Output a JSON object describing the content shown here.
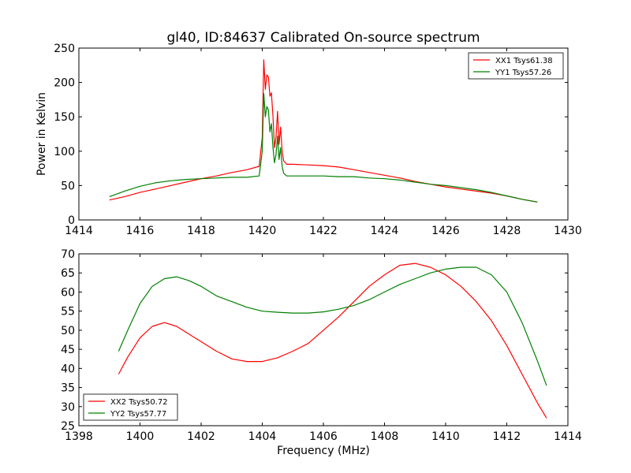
{
  "title": "gl40, ID:84637 Calibrated On-source spectrum",
  "colors": {
    "red": "#ff0000",
    "green": "#008000",
    "axis": "#000000"
  },
  "chart_data": [
    {
      "type": "line",
      "ylabel": "Power in Kelvin",
      "xlabel": "",
      "xlim": [
        1414,
        1430
      ],
      "ylim": [
        0,
        250
      ],
      "xticks": [
        "1414",
        "1416",
        "1418",
        "1420",
        "1422",
        "1424",
        "1426",
        "1428",
        "1430"
      ],
      "yticks": [
        "0",
        "50",
        "100",
        "150",
        "200",
        "250"
      ],
      "legend_position": "top-right",
      "series": [
        {
          "name": "XX1 Tsys61.38",
          "color": "#ff0000",
          "x": [
            1415.0,
            1415.5,
            1416.0,
            1416.5,
            1417.0,
            1417.5,
            1418.0,
            1418.5,
            1419.0,
            1419.5,
            1419.9,
            1420.0,
            1420.05,
            1420.1,
            1420.15,
            1420.2,
            1420.25,
            1420.3,
            1420.35,
            1420.4,
            1420.45,
            1420.5,
            1420.55,
            1420.6,
            1420.65,
            1420.7,
            1420.8,
            1421.0,
            1421.5,
            1422.0,
            1422.5,
            1423.0,
            1423.5,
            1424.0,
            1424.5,
            1425.0,
            1425.5,
            1426.0,
            1426.5,
            1427.0,
            1427.5,
            1428.0,
            1428.5,
            1429.0
          ],
          "y": [
            29,
            34,
            40,
            45,
            50,
            55,
            60,
            64,
            69,
            73,
            78,
            120,
            233,
            190,
            211,
            208,
            180,
            185,
            150,
            105,
            120,
            158,
            110,
            135,
            100,
            86,
            81,
            81,
            80,
            79,
            77,
            73,
            69,
            65,
            61,
            56,
            52,
            48,
            45,
            42,
            39,
            35,
            30,
            26
          ]
        },
        {
          "name": "YY1 Tsys57.26",
          "color": "#008000",
          "x": [
            1415.0,
            1415.5,
            1416.0,
            1416.5,
            1417.0,
            1417.5,
            1418.0,
            1418.5,
            1419.0,
            1419.5,
            1419.9,
            1420.0,
            1420.05,
            1420.1,
            1420.15,
            1420.2,
            1420.25,
            1420.3,
            1420.35,
            1420.4,
            1420.45,
            1420.5,
            1420.55,
            1420.6,
            1420.65,
            1420.7,
            1420.8,
            1421.0,
            1421.5,
            1422.0,
            1422.5,
            1423.0,
            1423.5,
            1424.0,
            1424.5,
            1425.0,
            1425.5,
            1426.0,
            1426.5,
            1427.0,
            1427.5,
            1428.0,
            1428.5,
            1429.0
          ],
          "y": [
            34,
            42,
            49,
            54,
            57,
            59,
            60,
            61,
            62,
            62,
            64,
            100,
            184,
            150,
            165,
            160,
            128,
            140,
            105,
            83,
            95,
            122,
            88,
            105,
            78,
            68,
            64,
            64,
            64,
            64,
            63,
            63,
            61,
            60,
            58,
            55,
            52,
            50,
            47,
            44,
            40,
            35,
            30,
            26
          ]
        }
      ]
    },
    {
      "type": "line",
      "ylabel": "",
      "xlabel": "Frequency (MHz)",
      "xlim": [
        1398,
        1414
      ],
      "ylim": [
        25,
        70
      ],
      "xticks": [
        "1398",
        "1400",
        "1402",
        "1404",
        "1406",
        "1408",
        "1410",
        "1412",
        "1414"
      ],
      "yticks": [
        "25",
        "30",
        "35",
        "40",
        "45",
        "50",
        "55",
        "60",
        "65",
        "70"
      ],
      "legend_position": "bottom-left",
      "series": [
        {
          "name": "XX2 Tsys50.72",
          "color": "#ff0000",
          "x": [
            1399.3,
            1399.6,
            1400.0,
            1400.4,
            1400.8,
            1401.2,
            1401.6,
            1402.0,
            1402.5,
            1403.0,
            1403.5,
            1404.0,
            1404.5,
            1405.0,
            1405.5,
            1406.0,
            1406.5,
            1407.0,
            1407.5,
            1408.0,
            1408.5,
            1409.0,
            1409.5,
            1410.0,
            1410.5,
            1411.0,
            1411.5,
            1412.0,
            1412.5,
            1413.0,
            1413.3
          ],
          "y": [
            38.5,
            43,
            48,
            51,
            52,
            51,
            49,
            47,
            44.5,
            42.5,
            41.8,
            41.8,
            42.8,
            44.5,
            46.5,
            50,
            53.5,
            57.5,
            61.5,
            64.5,
            67,
            67.5,
            66.5,
            64.5,
            61.5,
            57.5,
            52.5,
            46,
            38.5,
            31,
            27
          ]
        },
        {
          "name": "YY2 Tsys57.77",
          "color": "#008000",
          "x": [
            1399.3,
            1399.6,
            1400.0,
            1400.4,
            1400.8,
            1401.2,
            1401.6,
            1402.0,
            1402.5,
            1403.0,
            1403.5,
            1404.0,
            1404.5,
            1405.0,
            1405.5,
            1406.0,
            1406.5,
            1407.0,
            1407.5,
            1408.0,
            1408.5,
            1409.0,
            1409.5,
            1410.0,
            1410.5,
            1411.0,
            1411.5,
            1412.0,
            1412.5,
            1413.0,
            1413.3
          ],
          "y": [
            44.5,
            50,
            57,
            61.5,
            63.5,
            64,
            63,
            61.5,
            59,
            57.5,
            56,
            55,
            54.7,
            54.5,
            54.5,
            54.8,
            55.5,
            56.5,
            58,
            60,
            62,
            63.5,
            65,
            66,
            66.5,
            66.5,
            64.5,
            60,
            52,
            42,
            35.5
          ]
        }
      ]
    }
  ]
}
